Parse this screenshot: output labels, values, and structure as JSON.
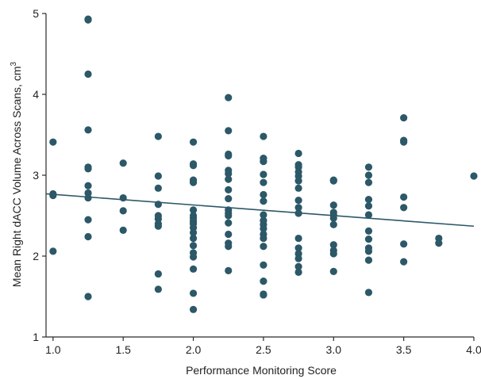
{
  "chart_data": {
    "type": "scatter",
    "xlabel": "Performance Monitoring Score",
    "ylabel_main": "Mean Right dACC Volume Across Scans, cm",
    "ylabel_sup": "3",
    "xlim": [
      0.95,
      4.0
    ],
    "ylim": [
      1,
      5
    ],
    "xticks": [
      "1.0",
      "1.5",
      "2.0",
      "2.5",
      "3.0",
      "3.5",
      "4.0"
    ],
    "yticks": [
      "1",
      "2",
      "3",
      "4",
      "5"
    ],
    "grid": false,
    "colors": {
      "points": "#2c5868",
      "trend": "#2c5868",
      "axis": "#2b2b2b"
    },
    "series": [
      {
        "points": [
          [
            1.0,
            3.41
          ],
          [
            1.0,
            2.77
          ],
          [
            1.0,
            2.75
          ],
          [
            1.0,
            2.06
          ],
          [
            1.25,
            4.93
          ],
          [
            1.25,
            4.92
          ],
          [
            1.25,
            4.25
          ],
          [
            1.25,
            3.56
          ],
          [
            1.25,
            3.1
          ],
          [
            1.25,
            3.08
          ],
          [
            1.25,
            2.87
          ],
          [
            1.25,
            2.78
          ],
          [
            1.25,
            2.72
          ],
          [
            1.25,
            2.45
          ],
          [
            1.25,
            2.24
          ],
          [
            1.25,
            1.5
          ],
          [
            1.5,
            3.15
          ],
          [
            1.5,
            2.72
          ],
          [
            1.5,
            2.56
          ],
          [
            1.5,
            2.32
          ],
          [
            1.75,
            3.48
          ],
          [
            1.75,
            2.99
          ],
          [
            1.75,
            2.84
          ],
          [
            1.75,
            2.64
          ],
          [
            1.75,
            2.5
          ],
          [
            1.75,
            2.46
          ],
          [
            1.75,
            2.4
          ],
          [
            1.75,
            2.37
          ],
          [
            1.75,
            1.78
          ],
          [
            1.75,
            1.59
          ],
          [
            2.0,
            3.41
          ],
          [
            2.0,
            3.14
          ],
          [
            2.0,
            3.12
          ],
          [
            2.0,
            2.94
          ],
          [
            2.0,
            2.91
          ],
          [
            2.0,
            2.57
          ],
          [
            2.0,
            2.5
          ],
          [
            2.0,
            2.47
          ],
          [
            2.0,
            2.43
          ],
          [
            2.0,
            2.4
          ],
          [
            2.0,
            2.35
          ],
          [
            2.0,
            2.29
          ],
          [
            2.0,
            2.22
          ],
          [
            2.0,
            2.13
          ],
          [
            2.0,
            2.04
          ],
          [
            2.0,
            1.99
          ],
          [
            2.0,
            1.84
          ],
          [
            2.0,
            1.54
          ],
          [
            2.0,
            1.34
          ],
          [
            2.25,
            3.96
          ],
          [
            2.25,
            3.55
          ],
          [
            2.25,
            3.26
          ],
          [
            2.25,
            3.24
          ],
          [
            2.25,
            3.06
          ],
          [
            2.25,
            3.02
          ],
          [
            2.25,
            2.95
          ],
          [
            2.25,
            2.82
          ],
          [
            2.25,
            2.71
          ],
          [
            2.25,
            2.57
          ],
          [
            2.25,
            2.53
          ],
          [
            2.25,
            2.5
          ],
          [
            2.25,
            2.41
          ],
          [
            2.25,
            2.27
          ],
          [
            2.25,
            2.16
          ],
          [
            2.25,
            2.12
          ],
          [
            2.25,
            1.82
          ],
          [
            2.5,
            3.48
          ],
          [
            2.5,
            3.21
          ],
          [
            2.5,
            3.17
          ],
          [
            2.5,
            3.01
          ],
          [
            2.5,
            2.91
          ],
          [
            2.5,
            2.76
          ],
          [
            2.5,
            2.68
          ],
          [
            2.5,
            2.51
          ],
          [
            2.5,
            2.44
          ],
          [
            2.5,
            2.39
          ],
          [
            2.5,
            2.34
          ],
          [
            2.5,
            2.27
          ],
          [
            2.5,
            2.22
          ],
          [
            2.5,
            2.12
          ],
          [
            2.5,
            1.89
          ],
          [
            2.5,
            1.69
          ],
          [
            2.5,
            1.53
          ],
          [
            2.5,
            1.52
          ],
          [
            2.75,
            3.27
          ],
          [
            2.75,
            3.13
          ],
          [
            2.75,
            3.1
          ],
          [
            2.75,
            3.04
          ],
          [
            2.75,
            2.99
          ],
          [
            2.75,
            2.93
          ],
          [
            2.75,
            2.84
          ],
          [
            2.75,
            2.69
          ],
          [
            2.75,
            2.6
          ],
          [
            2.75,
            2.53
          ],
          [
            2.75,
            2.22
          ],
          [
            2.75,
            2.1
          ],
          [
            2.75,
            2.03
          ],
          [
            2.75,
            1.97
          ],
          [
            2.75,
            1.87
          ],
          [
            2.75,
            1.8
          ],
          [
            3.0,
            2.94
          ],
          [
            3.0,
            2.93
          ],
          [
            3.0,
            2.63
          ],
          [
            3.0,
            2.54
          ],
          [
            3.0,
            2.51
          ],
          [
            3.0,
            2.47
          ],
          [
            3.0,
            2.39
          ],
          [
            3.0,
            2.14
          ],
          [
            3.0,
            2.07
          ],
          [
            3.0,
            2.03
          ],
          [
            3.0,
            1.81
          ],
          [
            3.25,
            3.1
          ],
          [
            3.25,
            3.0
          ],
          [
            3.25,
            2.91
          ],
          [
            3.25,
            2.7
          ],
          [
            3.25,
            2.62
          ],
          [
            3.25,
            2.51
          ],
          [
            3.25,
            2.31
          ],
          [
            3.25,
            2.21
          ],
          [
            3.25,
            2.1
          ],
          [
            3.25,
            2.06
          ],
          [
            3.25,
            1.95
          ],
          [
            3.25,
            1.55
          ],
          [
            3.5,
            3.71
          ],
          [
            3.5,
            3.43
          ],
          [
            3.5,
            3.41
          ],
          [
            3.5,
            2.73
          ],
          [
            3.5,
            2.6
          ],
          [
            3.5,
            2.15
          ],
          [
            3.5,
            1.93
          ],
          [
            3.75,
            2.22
          ],
          [
            3.75,
            2.16
          ],
          [
            4.0,
            2.99
          ]
        ]
      }
    ],
    "trendline": {
      "x": [
        0.95,
        4.0
      ],
      "y": [
        2.77,
        2.37
      ]
    }
  }
}
